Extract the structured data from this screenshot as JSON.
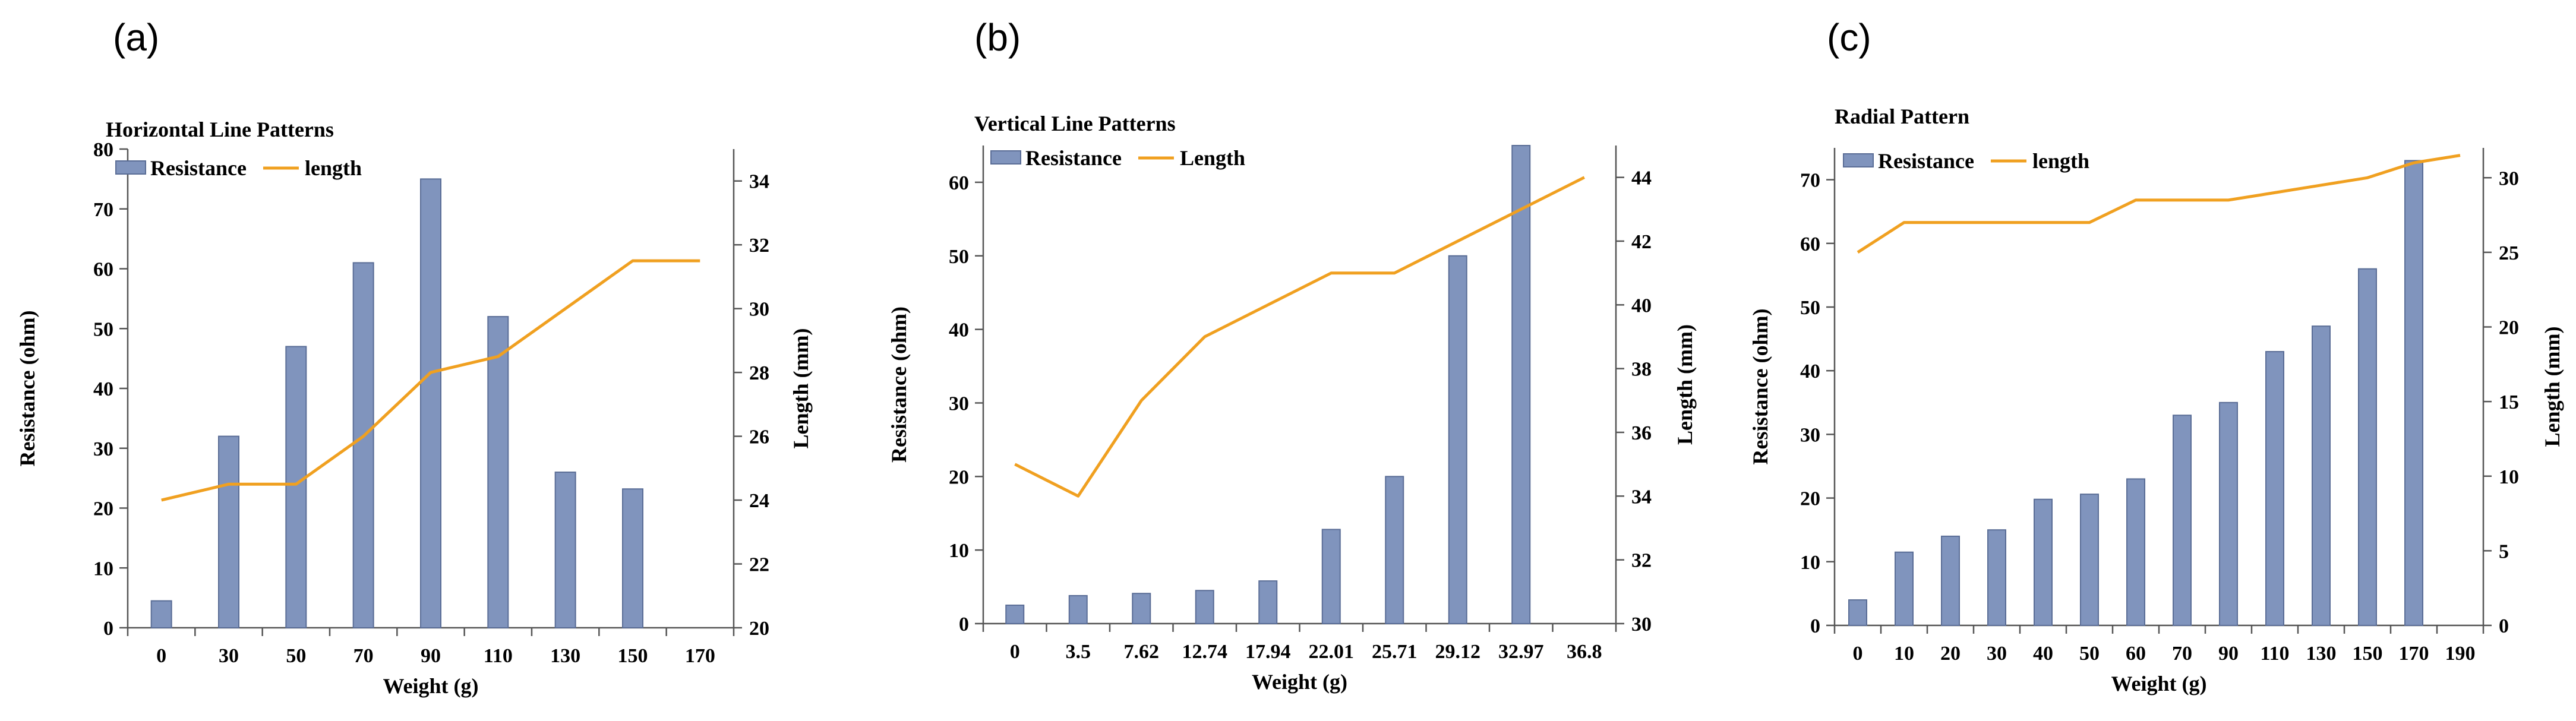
{
  "colors": {
    "bar_fill": "#8094bd",
    "bar_stroke": "#5a6d96",
    "line": "#f0a020",
    "axis": "#555555"
  },
  "chart_data": [
    {
      "panel_label": "(a)",
      "type": "bar+line",
      "title": "Horizontal Line Patterns",
      "xlabel": "Weight (g)",
      "ylabel_left": "Resistance  (ohm)",
      "ylabel_right": "Length (mm)",
      "legend": [
        "Resistance",
        "length"
      ],
      "categories": [
        "0",
        "30",
        "50",
        "70",
        "90",
        "110",
        "130",
        "150",
        "170"
      ],
      "bar_categories": [
        "0",
        "30",
        "50",
        "70",
        "90",
        "110",
        "130",
        "150"
      ],
      "bar_values": [
        4.5,
        32,
        47,
        61,
        75,
        52,
        26,
        23.2
      ],
      "line_values": [
        24,
        24.5,
        24.5,
        26,
        28,
        28.5,
        30,
        31.5,
        31.5
      ],
      "left_ylim": [
        0,
        80
      ],
      "left_ticks": [
        0,
        10,
        20,
        30,
        40,
        50,
        60,
        70,
        80
      ],
      "right_ylim": [
        20,
        35
      ],
      "right_ticks": [
        20,
        22,
        24,
        26,
        28,
        30,
        32,
        34
      ]
    },
    {
      "panel_label": "(b)",
      "type": "bar+line",
      "title": "Vertical Line Patterns",
      "xlabel": "Weight (g)",
      "ylabel_left": "Resistance  (ohm)",
      "ylabel_right": "Length (mm)",
      "legend": [
        "Resistance",
        "Length"
      ],
      "categories": [
        "0",
        "3.5",
        "7.62",
        "12.74",
        "17.94",
        "22.01",
        "25.71",
        "29.12",
        "32.97",
        "36.8"
      ],
      "bar_categories": [
        "0",
        "3.5",
        "7.62",
        "12.74",
        "17.94",
        "22.01",
        "25.71",
        "29.12",
        "32.97"
      ],
      "bar_values": [
        2.5,
        3.8,
        4.1,
        4.5,
        5.8,
        12.8,
        20,
        50,
        65
      ],
      "line_values": [
        35,
        34,
        37,
        39,
        40,
        41,
        41,
        42,
        43,
        44
      ],
      "left_ylim": [
        0,
        65
      ],
      "left_ticks": [
        0,
        10,
        20,
        30,
        40,
        50,
        60
      ],
      "right_ylim": [
        30,
        45
      ],
      "right_ticks": [
        30,
        32,
        34,
        36,
        38,
        40,
        42,
        44
      ]
    },
    {
      "panel_label": "(c)",
      "type": "bar+line",
      "title": "Radial Pattern",
      "xlabel": "Weight (g)",
      "ylabel_left": "Resistance  (ohm)",
      "ylabel_right": "Length (mm)",
      "legend": [
        "Resistance",
        "length"
      ],
      "categories": [
        "0",
        "10",
        "20",
        "30",
        "40",
        "50",
        "60",
        "70",
        "90",
        "110",
        "130",
        "150",
        "170",
        "190"
      ],
      "bar_categories": [
        "0",
        "10",
        "20",
        "30",
        "40",
        "50",
        "60",
        "70",
        "90",
        "110",
        "130",
        "150",
        "170"
      ],
      "bar_values": [
        4,
        11.5,
        14,
        15,
        19.8,
        20.6,
        23,
        33,
        35,
        43,
        47,
        56,
        73
      ],
      "line_values": [
        25,
        27,
        27,
        27,
        27,
        27,
        28.5,
        28.5,
        28.5,
        29,
        29.5,
        30,
        31,
        31.5
      ],
      "left_ylim": [
        0,
        75
      ],
      "left_ticks": [
        0,
        10,
        20,
        30,
        40,
        50,
        60,
        70
      ],
      "right_ylim": [
        0,
        32
      ],
      "right_ticks": [
        0,
        5,
        10,
        15,
        20,
        25,
        30
      ]
    }
  ]
}
